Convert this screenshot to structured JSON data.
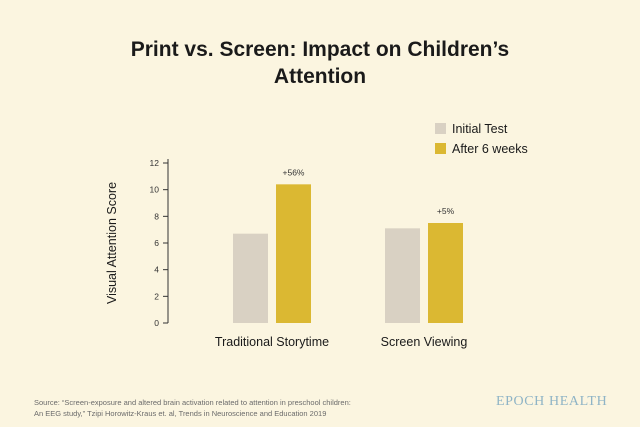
{
  "title_lines": [
    "Print vs. Screen: Impact on Children’s",
    "Attention"
  ],
  "source_lines": [
    "Source: “Screen-exposure and altered brain activation related to attention in preschool children:",
    "An EEG study,” Tzipi Horowitz-Kraus et. al, Trends in Neuroscience and Education 2019"
  ],
  "brand": "EPOCH HEALTH",
  "colors": {
    "background": "#fbf5e0",
    "initial": "#d9d1c3",
    "after": "#dbb832"
  },
  "chart_data": {
    "type": "bar",
    "title": "Print vs. Screen: Impact on Children’s Attention",
    "xlabel": "",
    "ylabel": "Visual Attention Score",
    "ylim": [
      0,
      12
    ],
    "yticks": [
      0,
      2,
      4,
      6,
      8,
      10,
      12
    ],
    "grid": false,
    "legend_position": "top-right",
    "categories": [
      "Traditional Storytime",
      "Screen Viewing"
    ],
    "series": [
      {
        "name": "Initial Test",
        "values": [
          6.7,
          7.1
        ],
        "color": "#d9d1c3"
      },
      {
        "name": "After 6 weeks",
        "values": [
          10.4,
          7.5
        ],
        "color": "#dbb832"
      }
    ],
    "annotations": [
      "+56%",
      "+5%"
    ]
  }
}
